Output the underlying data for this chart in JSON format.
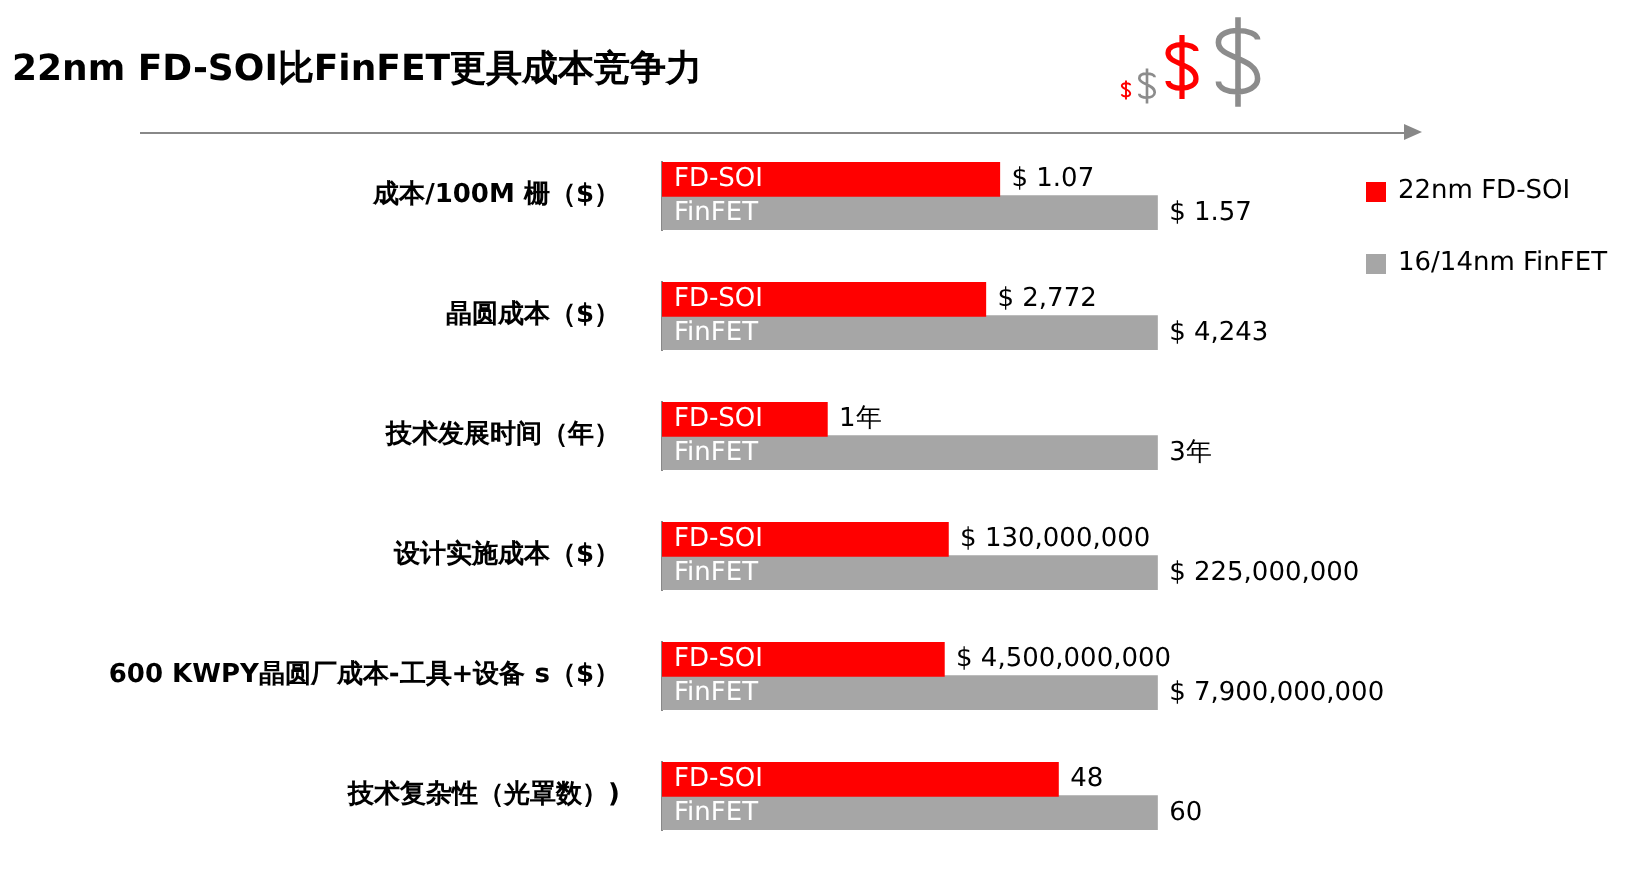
{
  "chart_data": [
    {
      "type": "bar",
      "orientation": "horizontal",
      "stacked": true,
      "legend": "right",
      "title": "22nm FD-SOI比FinFET更具成本竞争力",
      "ylabel": "成本/100M 栅（$）",
      "categories": [
        "FD-SOI",
        "FinFET"
      ],
      "series": [
        {
          "name": "22nm FD-SOI",
          "color": "#ff0000",
          "values": [
            1.07,
            null
          ],
          "value_labels": [
            "$ 1.07",
            null
          ]
        },
        {
          "name": "16/14nm FinFET",
          "color": "#a6a6a6",
          "values": [
            null,
            1.57
          ],
          "value_labels": [
            null,
            "$ 1.57"
          ]
        }
      ]
    },
    {
      "type": "bar",
      "orientation": "horizontal",
      "stacked": true,
      "ylabel": "晶圆成本（$）",
      "categories": [
        "FD-SOI",
        "FinFET"
      ],
      "series": [
        {
          "color": "#ff0000",
          "values": [
            2772,
            null
          ],
          "value_labels": [
            "$ 2,772",
            null
          ]
        },
        {
          "color": "#a6a6a6",
          "values": [
            null,
            4243
          ],
          "value_labels": [
            null,
            "$ 4,243"
          ]
        }
      ]
    },
    {
      "type": "bar",
      "orientation": "horizontal",
      "stacked": true,
      "ylabel": "技术发展时间（年）",
      "categories": [
        "FD-SOI",
        "FinFET"
      ],
      "series": [
        {
          "color": "#ff0000",
          "values": [
            1,
            null
          ],
          "value_labels": [
            "1年",
            null
          ]
        },
        {
          "color": "#a6a6a6",
          "values": [
            null,
            3
          ],
          "value_labels": [
            null,
            "3年"
          ]
        }
      ]
    },
    {
      "type": "bar",
      "orientation": "horizontal",
      "stacked": true,
      "ylabel": "设计实施成本（$）",
      "categories": [
        "FD-SOI",
        "FinFET"
      ],
      "series": [
        {
          "color": "#ff0000",
          "values": [
            130000000,
            null
          ],
          "value_labels": [
            "$ 130,000,000",
            null
          ]
        },
        {
          "color": "#a6a6a6",
          "values": [
            null,
            225000000
          ],
          "value_labels": [
            null,
            "$ 225,000,000"
          ]
        }
      ]
    },
    {
      "type": "bar",
      "orientation": "horizontal",
      "stacked": true,
      "ylabel": "600 KWPY晶圆厂成本-工具+设备 s（$）",
      "categories": [
        "FD-SOI",
        "FinFET"
      ],
      "series": [
        {
          "color": "#ff0000",
          "values": [
            4500000000,
            null
          ],
          "value_labels": [
            "$ 4,500,000,000",
            null
          ]
        },
        {
          "color": "#a6a6a6",
          "values": [
            null,
            7900000000
          ],
          "value_labels": [
            null,
            "$ 7,900,000,000"
          ]
        }
      ]
    },
    {
      "type": "bar",
      "orientation": "horizontal",
      "stacked": true,
      "ylabel": "技术复杂性（光罩数）)",
      "categories": [
        "FD-SOI",
        "FinFET"
      ],
      "series": [
        {
          "color": "#ff0000",
          "values": [
            48,
            null
          ],
          "value_labels": [
            "48",
            null
          ]
        },
        {
          "color": "#a6a6a6",
          "values": [
            null,
            60
          ],
          "value_labels": [
            null,
            "60"
          ]
        }
      ]
    }
  ]
}
